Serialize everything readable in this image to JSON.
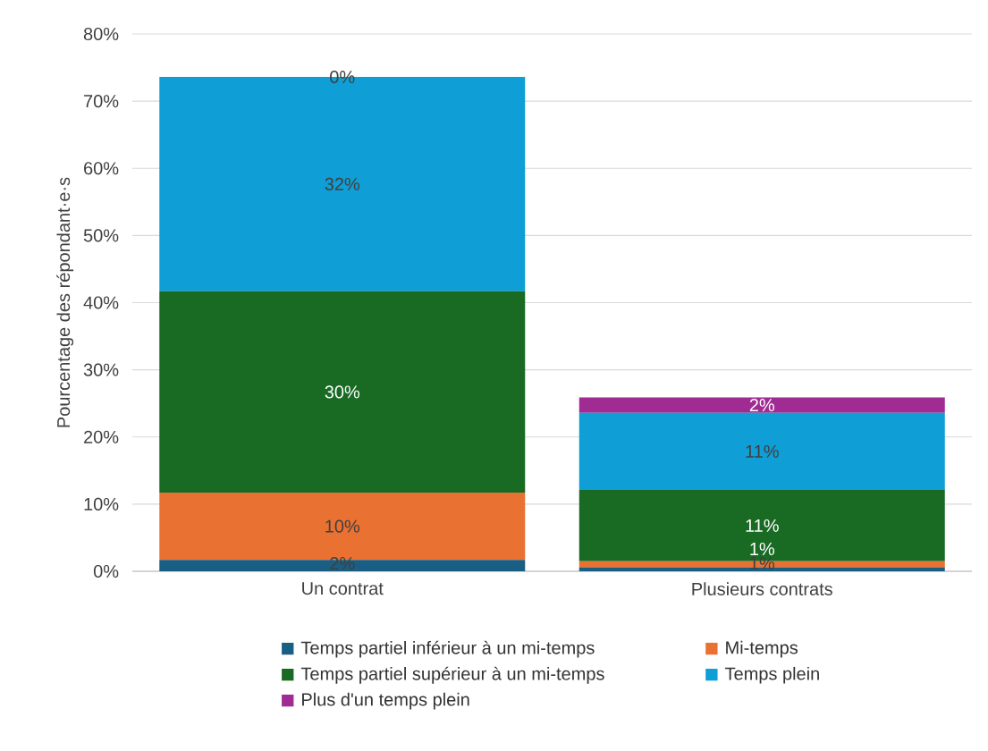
{
  "chart_data": {
    "type": "bar",
    "stacked": true,
    "ylabel": "Pourcentage des répondant·e·s",
    "categories": [
      "Un contrat",
      "Plusieurs contrats"
    ],
    "series": [
      {
        "name": "Temps partiel inférieur à un mi-temps",
        "color": "#1a5e83",
        "values": [
          1.7,
          0.6
        ],
        "value_labels": [
          "2%",
          "1%"
        ]
      },
      {
        "name": "Mi-temps",
        "color": "#e97132",
        "values": [
          10.0,
          0.9
        ],
        "value_labels": [
          "10%",
          "1%"
        ]
      },
      {
        "name": "Temps partiel supérieur à un mi-temps",
        "color": "#196b24",
        "values": [
          30.0,
          10.6
        ],
        "value_labels": [
          "30%",
          "11%"
        ]
      },
      {
        "name": "Temps plein",
        "color": "#0f9ed5",
        "values": [
          31.9,
          11.5
        ],
        "value_labels": [
          "32%",
          "11%"
        ]
      },
      {
        "name": "Plus d'un temps plein",
        "color": "#a02b93",
        "values": [
          0.0,
          2.3
        ],
        "value_labels": [
          "0%",
          "2%"
        ]
      }
    ],
    "ylim": [
      0,
      80
    ],
    "yticks": [
      {
        "value": 0,
        "label": "0%"
      },
      {
        "value": 10,
        "label": "10%"
      },
      {
        "value": 20,
        "label": "20%"
      },
      {
        "value": 30,
        "label": "30%"
      },
      {
        "value": 40,
        "label": "40%"
      },
      {
        "value": 50,
        "label": "50%"
      },
      {
        "value": 60,
        "label": "60%"
      },
      {
        "value": 70,
        "label": "70%"
      },
      {
        "value": 80,
        "label": "80%"
      }
    ],
    "grid": "y",
    "legend": "bottom"
  }
}
